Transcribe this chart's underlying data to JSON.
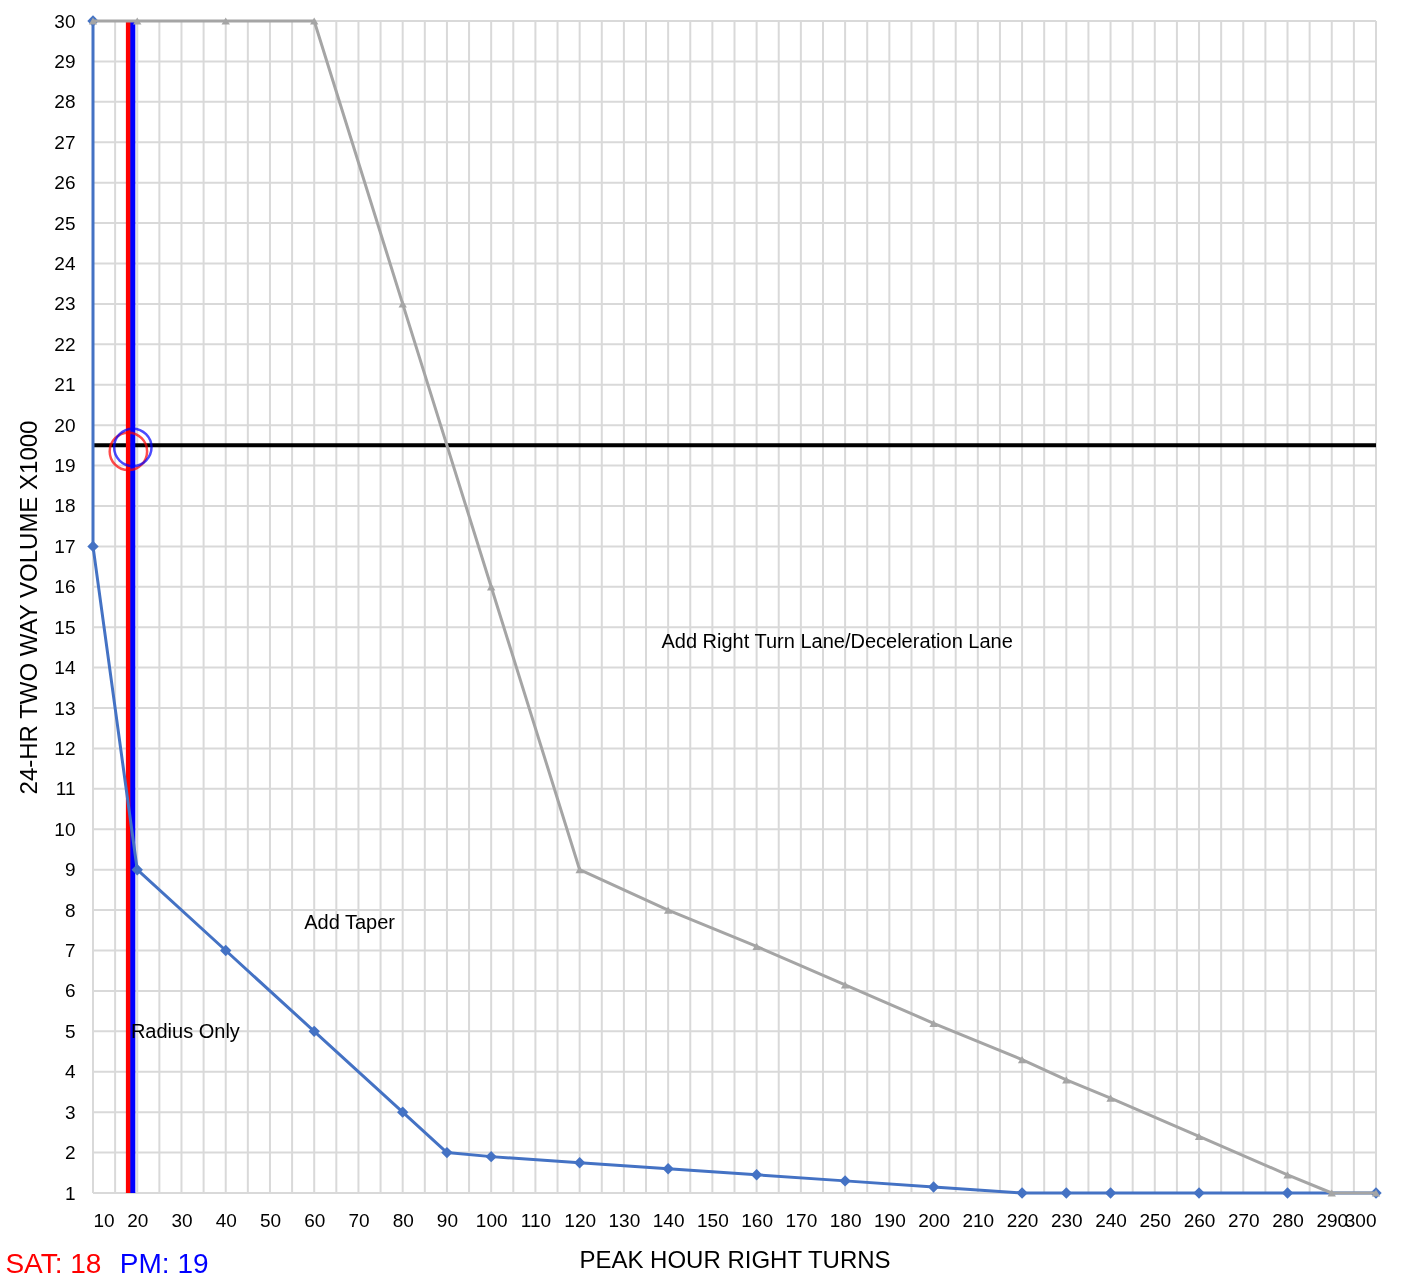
{
  "chart_data": {
    "type": "line",
    "xlabel": "PEAK HOUR RIGHT TURNS",
    "ylabel": "24-HR TWO WAY VOLUME X1000",
    "xlim": [
      10,
      300
    ],
    "ylim": [
      1,
      30
    ],
    "xticks": [
      10,
      {
        "value": 15,
        "label": null
      },
      20,
      {
        "value": 25,
        "label": null
      },
      30,
      {
        "value": 35,
        "label": null
      },
      40,
      {
        "value": 45,
        "label": null
      },
      50,
      {
        "value": 55,
        "label": null
      },
      60,
      {
        "value": 65,
        "label": null
      },
      70,
      {
        "value": 75,
        "label": null
      },
      80,
      {
        "value": 85,
        "label": null
      },
      90,
      {
        "value": 95,
        "label": null
      },
      100,
      {
        "value": 105,
        "label": null
      },
      110,
      {
        "value": 115,
        "label": null
      },
      120,
      {
        "value": 125,
        "label": null
      },
      130,
      {
        "value": 135,
        "label": null
      },
      140,
      {
        "value": 145,
        "label": null
      },
      150,
      {
        "value": 155,
        "label": null
      },
      160,
      {
        "value": 165,
        "label": null
      },
      170,
      {
        "value": 175,
        "label": null
      },
      180,
      {
        "value": 185,
        "label": null
      },
      190,
      {
        "value": 195,
        "label": null
      },
      200,
      {
        "value": 205,
        "label": null
      },
      210,
      {
        "value": 215,
        "label": null
      },
      220,
      {
        "value": 225,
        "label": null
      },
      230,
      {
        "value": 235,
        "label": null
      },
      240,
      {
        "value": 245,
        "label": null
      },
      250,
      {
        "value": 255,
        "label": null
      },
      260,
      {
        "value": 265,
        "label": null
      },
      270,
      {
        "value": 275,
        "label": null
      },
      280,
      {
        "value": 285,
        "label": null
      },
      290,
      {
        "value": 295,
        "label": null
      },
      300
    ],
    "yticks": [
      1,
      2,
      3,
      4,
      5,
      6,
      7,
      8,
      9,
      10,
      11,
      12,
      13,
      14,
      15,
      16,
      17,
      18,
      19,
      20,
      21,
      22,
      23,
      24,
      25,
      26,
      27,
      28,
      29,
      30
    ],
    "grid": true,
    "legend": false,
    "series": [
      {
        "type": "line",
        "color": "#a5a5a5",
        "marker": "triangle",
        "x": [
          10,
          20,
          40,
          60,
          80,
          100,
          120,
          140,
          160,
          180,
          200,
          220,
          230,
          240,
          260,
          280,
          290,
          300
        ],
        "values": [
          30,
          30,
          30,
          30,
          23,
          16,
          9,
          8,
          7.1,
          6.15,
          5.2,
          4.3,
          3.8,
          3.35,
          2.4,
          1.45,
          1,
          1
        ]
      },
      {
        "type": "line",
        "color": "#4472c4",
        "marker": "diamond",
        "x": [
          10,
          10,
          20,
          40,
          60,
          80,
          90,
          100,
          120,
          140,
          160,
          180,
          200,
          220,
          230,
          240,
          260,
          280,
          300
        ],
        "values": [
          30,
          17,
          9,
          7,
          5,
          3,
          2,
          1.9,
          1.75,
          1.6,
          1.45,
          1.3,
          1.15,
          1,
          1,
          1,
          1,
          1,
          1
        ]
      },
      {
        "type": "scatter",
        "color": "#ff0000",
        "marker": "circle",
        "x": [
          18
        ],
        "values": [
          19.35
        ]
      },
      {
        "type": "scatter",
        "color": "#0000ff",
        "marker": "circle",
        "x": [
          19
        ],
        "values": [
          19.45
        ]
      }
    ],
    "ref_lines": [
      {
        "axis": "y",
        "value": 19.5,
        "label": null,
        "color": "#000000"
      },
      {
        "axis": "x",
        "value": 18,
        "label": "SAT: 18",
        "color": "#ff0000"
      },
      {
        "axis": "x",
        "value": 19,
        "label": "PM: 19",
        "color": "#0000ff"
      }
    ],
    "annotations": [
      "Add Right Turn Lane/Deceleration Lane",
      "Add Taper",
      "Radius Only"
    ]
  }
}
